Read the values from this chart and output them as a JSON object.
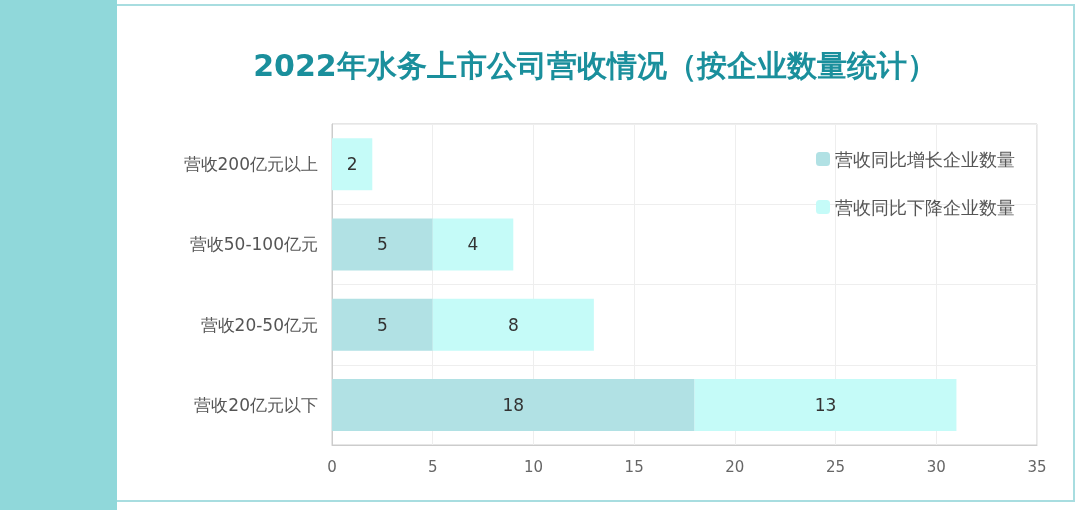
{
  "chart_data": {
    "type": "bar",
    "orientation": "horizontal",
    "stacked": true,
    "title": "2022年水务上市公司营收情况（按企业数量统计）",
    "categories": [
      "营收200亿元以上",
      "营收50-100亿元",
      "营收20-50亿元",
      "营收20亿元以下"
    ],
    "series": [
      {
        "name": "营收同比增长企业数量",
        "color": "#b1e1e4",
        "values": [
          null,
          5,
          5,
          18
        ]
      },
      {
        "name": "营收同比下降企业数量",
        "color": "#c5fbf8",
        "values": [
          2,
          4,
          8,
          13
        ]
      }
    ],
    "xlim": [
      0,
      35
    ],
    "xticks": [
      0,
      5,
      10,
      15,
      20,
      25,
      30,
      35
    ],
    "grid": true,
    "legend": "top right",
    "data_labels": true
  }
}
